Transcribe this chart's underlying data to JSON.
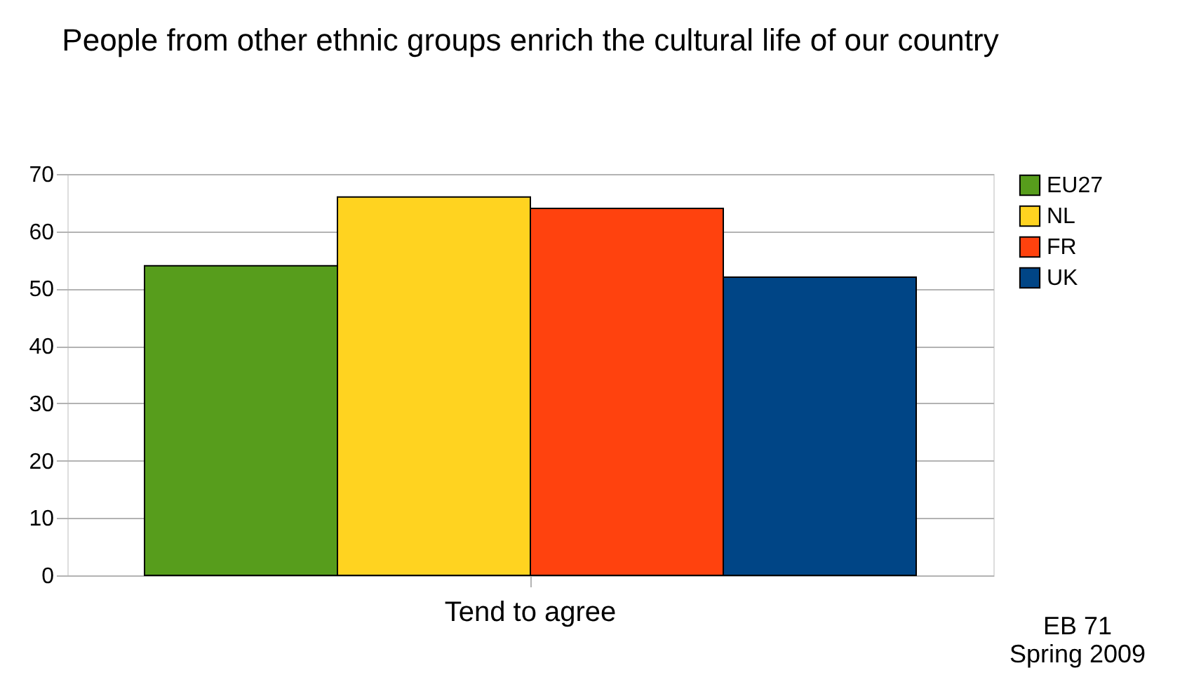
{
  "chart_data": {
    "type": "bar",
    "title": "People from other ethnic groups enrich the cultural life of our country",
    "categories": [
      "Tend to agree"
    ],
    "series": [
      {
        "name": "EU27",
        "color": "#579d1c",
        "values": [
          54
        ]
      },
      {
        "name": "NL",
        "color": "#ffd320",
        "values": [
          66
        ]
      },
      {
        "name": "FR",
        "color": "#ff420e",
        "values": [
          64
        ]
      },
      {
        "name": "UK",
        "color": "#004586",
        "values": [
          52
        ]
      }
    ],
    "ylim": [
      0,
      70
    ],
    "yticks": [
      0,
      10,
      20,
      30,
      40,
      50,
      60,
      70
    ],
    "grid": "y",
    "legend": "right",
    "annotations": [
      "EB 71\nSpring 2009"
    ]
  }
}
